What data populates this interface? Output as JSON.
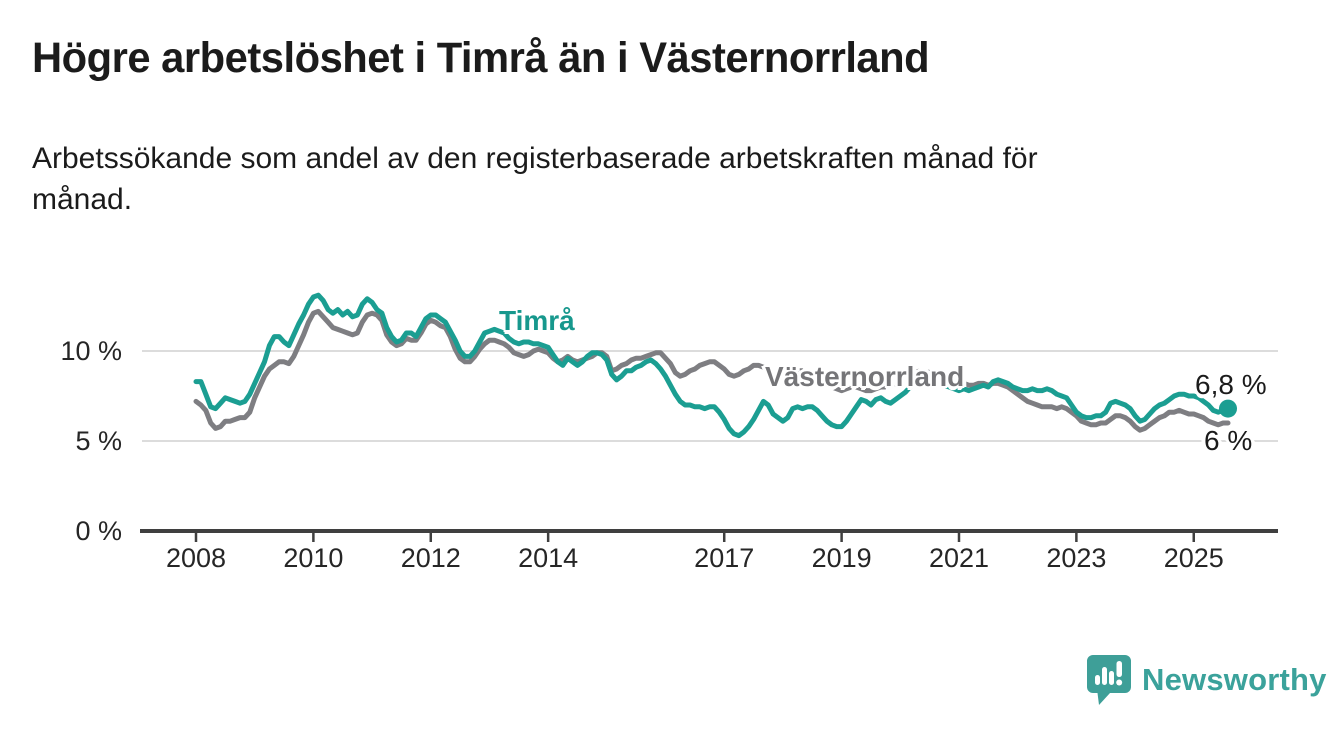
{
  "title": "Högre arbetslöshet i Timrå än i Västernorrland",
  "subtitle": {
    "line1": "Arbetssökande som andel av den registerbaserade arbetskraften månad för",
    "line2": "månad."
  },
  "branding": {
    "logo_text": "Newsworthy",
    "logo_icon": "bar-chart-speech-bubble-icon",
    "logo_color": "#3ba29b"
  },
  "colors": {
    "timra_line": "#1b9e92",
    "vasternorrland_line": "#7e7e82",
    "gridline": "#dcdcdc",
    "axis": "#3f3f3f",
    "text": "#1b1b1b"
  },
  "chart_data": {
    "type": "line",
    "title": "Högre arbetslöshet i Timrå än i Västernorrland",
    "subtitle": "Arbetssökande som andel av den registerbaserade arbetskraften månad för månad.",
    "frequency": "monthly",
    "x_start": "2008-01",
    "x_end": "2025-08",
    "ylim": [
      0,
      13.5
    ],
    "grid": "horizontal",
    "y_tick_labels": [
      "0 %",
      "5 %",
      "10 %"
    ],
    "x_tick_labels": [
      "2008",
      "2010",
      "2012",
      "2014",
      "2017",
      "2019",
      "2021",
      "2023",
      "2025"
    ],
    "series": [
      {
        "id": "timra",
        "name": "Timrå",
        "color": "#1b9e92",
        "end_value": 6.8,
        "end_label": "6,8 %",
        "end_dot": true,
        "values": [
          8.3,
          8.3,
          7.6,
          6.9,
          6.8,
          7.1,
          7.4,
          7.3,
          7.2,
          7.1,
          7.2,
          7.6,
          8.2,
          8.8,
          9.4,
          10.3,
          10.8,
          10.8,
          10.5,
          10.3,
          10.9,
          11.5,
          12.0,
          12.6,
          13.0,
          13.1,
          12.8,
          12.3,
          12.1,
          12.3,
          12.0,
          12.2,
          11.9,
          12.0,
          12.6,
          12.9,
          12.7,
          12.3,
          12.1,
          11.3,
          10.8,
          10.5,
          10.6,
          11.0,
          11.0,
          10.8,
          11.3,
          11.8,
          12.0,
          12.0,
          11.8,
          11.6,
          11.1,
          10.6,
          10.0,
          9.7,
          9.7,
          10.0,
          10.5,
          11.0,
          11.1,
          11.2,
          11.1,
          11.0,
          10.7,
          10.5,
          10.4,
          10.5,
          10.5,
          10.4,
          10.4,
          10.3,
          10.2,
          9.8,
          9.4,
          9.2,
          9.6,
          9.4,
          9.2,
          9.4,
          9.7,
          9.9,
          9.9,
          9.8,
          9.5,
          8.7,
          8.4,
          8.6,
          8.9,
          8.9,
          9.1,
          9.2,
          9.4,
          9.5,
          9.3,
          9.0,
          8.6,
          8.1,
          7.6,
          7.2,
          7.0,
          7.0,
          6.9,
          6.9,
          6.8,
          6.9,
          6.9,
          6.6,
          6.2,
          5.7,
          5.4,
          5.3,
          5.5,
          5.8,
          6.2,
          6.7,
          7.2,
          7.0,
          6.5,
          6.3,
          6.1,
          6.3,
          6.8,
          6.9,
          6.8,
          6.9,
          6.9,
          6.7,
          6.4,
          6.1,
          5.9,
          5.8,
          5.8,
          6.1,
          6.5,
          6.9,
          7.3,
          7.2,
          7.0,
          7.3,
          7.4,
          7.2,
          7.1,
          7.3,
          7.5,
          7.7,
          8.0,
          8.3,
          8.5,
          8.5,
          8.4,
          8.3,
          8.2,
          8.1,
          8.0,
          7.9,
          7.8,
          7.9,
          7.8,
          7.9,
          8.0,
          8.1,
          8.0,
          8.3,
          8.4,
          8.3,
          8.2,
          8.0,
          7.9,
          7.8,
          7.8,
          7.9,
          7.8,
          7.8,
          7.9,
          7.8,
          7.6,
          7.5,
          7.4,
          7.0,
          6.6,
          6.4,
          6.3,
          6.3,
          6.4,
          6.4,
          6.6,
          7.1,
          7.2,
          7.1,
          7.0,
          6.8,
          6.4,
          6.1,
          6.2,
          6.5,
          6.8,
          7.0,
          7.1,
          7.3,
          7.5,
          7.6,
          7.6,
          7.5,
          7.5,
          7.4,
          7.2,
          7.0,
          6.7,
          6.6,
          6.7,
          6.8
        ]
      },
      {
        "id": "vasternorrland",
        "name": "Västernorrland",
        "color": "#7e7e82",
        "end_value": 6.0,
        "end_label": "6 %",
        "end_dot": false,
        "values": [
          7.2,
          7.0,
          6.7,
          6.0,
          5.7,
          5.8,
          6.1,
          6.1,
          6.2,
          6.3,
          6.3,
          6.6,
          7.4,
          8.0,
          8.6,
          9.0,
          9.2,
          9.4,
          9.4,
          9.3,
          9.7,
          10.3,
          10.9,
          11.6,
          12.1,
          12.2,
          11.9,
          11.6,
          11.3,
          11.2,
          11.1,
          11.0,
          10.9,
          11.0,
          11.6,
          12.0,
          12.1,
          12.0,
          11.7,
          10.9,
          10.5,
          10.3,
          10.4,
          10.7,
          10.6,
          10.6,
          11.0,
          11.5,
          11.7,
          11.6,
          11.4,
          11.3,
          10.8,
          10.1,
          9.6,
          9.4,
          9.4,
          9.7,
          10.1,
          10.4,
          10.6,
          10.6,
          10.5,
          10.4,
          10.2,
          9.9,
          9.8,
          9.7,
          9.8,
          10.0,
          10.1,
          10.0,
          9.9,
          9.6,
          9.4,
          9.5,
          9.7,
          9.5,
          9.4,
          9.5,
          9.6,
          9.7,
          9.9,
          9.9,
          9.7,
          8.9,
          9.0,
          9.2,
          9.3,
          9.5,
          9.6,
          9.6,
          9.7,
          9.8,
          9.9,
          9.9,
          9.6,
          9.3,
          8.8,
          8.6,
          8.7,
          8.9,
          9.0,
          9.2,
          9.3,
          9.4,
          9.4,
          9.2,
          9.0,
          8.7,
          8.6,
          8.7,
          8.9,
          9.0,
          9.2,
          9.2,
          9.1,
          8.9,
          8.7,
          8.6,
          8.5,
          8.6,
          8.9,
          8.9,
          8.9,
          8.8,
          8.7,
          8.6,
          8.4,
          8.2,
          8.0,
          7.9,
          7.8,
          7.9,
          8.0,
          8.0,
          7.9,
          7.8,
          7.8,
          7.9,
          8.0,
          8.0,
          8.1,
          8.2,
          8.3,
          8.4,
          8.6,
          8.8,
          8.9,
          8.9,
          8.8,
          8.7,
          8.6,
          8.5,
          8.4,
          8.3,
          8.2,
          8.2,
          8.1,
          8.1,
          8.2,
          8.2,
          8.1,
          8.2,
          8.2,
          8.1,
          8.0,
          7.8,
          7.6,
          7.4,
          7.2,
          7.1,
          7.0,
          6.9,
          6.9,
          6.9,
          6.8,
          6.9,
          6.8,
          6.6,
          6.4,
          6.1,
          6.0,
          5.9,
          5.9,
          6.0,
          6.0,
          6.2,
          6.4,
          6.4,
          6.3,
          6.1,
          5.8,
          5.6,
          5.7,
          5.9,
          6.1,
          6.3,
          6.4,
          6.6,
          6.6,
          6.7,
          6.6,
          6.5,
          6.5,
          6.4,
          6.3,
          6.1,
          6.0,
          5.9,
          6.0,
          6.0
        ]
      }
    ]
  }
}
